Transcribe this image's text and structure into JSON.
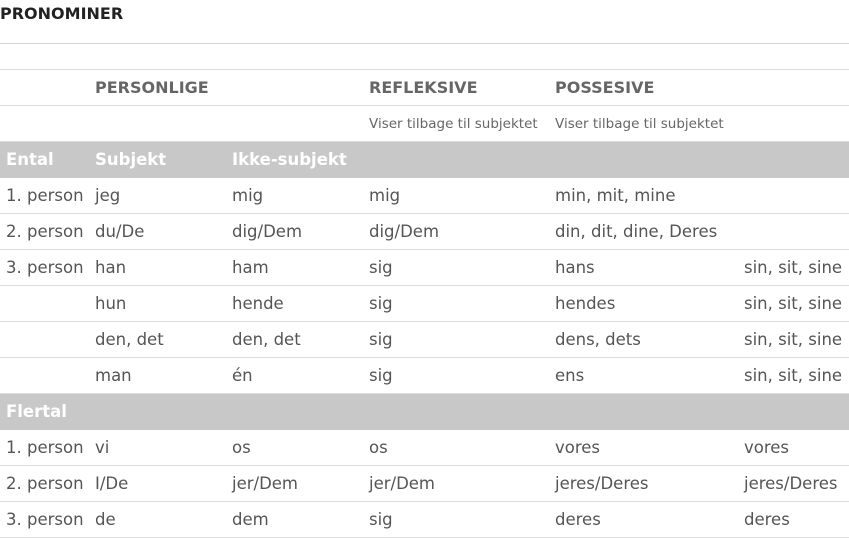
{
  "title": "PRONOMINER",
  "header": {
    "col0": "",
    "personlige": "PERSONLIGE",
    "col2": "",
    "refleksive": "REFLEKSIVE",
    "possesive": "POSSESIVE",
    "col5": ""
  },
  "subheader": {
    "refleksive_note": "Viser tilbage til subjektet",
    "possesive_note": "Viser tilbage til subjektet"
  },
  "groups": {
    "ental": {
      "label": "Ental",
      "subjekt": "Subjekt",
      "ikke_subjekt": "Ikke-subjekt",
      "rows": [
        [
          "1. person",
          "jeg",
          "mig",
          "mig",
          "min, mit, mine",
          ""
        ],
        [
          "2. person",
          "du/De",
          "dig/Dem",
          "dig/Dem",
          "din, dit, dine, Deres",
          ""
        ],
        [
          "3. person",
          "han",
          "ham",
          "sig",
          "hans",
          "sin, sit, sine"
        ],
        [
          "",
          "hun",
          "hende",
          "sig",
          "hendes",
          "sin, sit, sine"
        ],
        [
          "",
          "den, det",
          "den, det",
          "sig",
          "dens, dets",
          "sin, sit, sine"
        ],
        [
          "",
          "man",
          "én",
          "sig",
          "ens",
          "sin, sit, sine"
        ]
      ]
    },
    "flertal": {
      "label": "Flertal",
      "rows": [
        [
          "1. person",
          "vi",
          "os",
          "os",
          "vores",
          "vores"
        ],
        [
          "2. person",
          "I/De",
          "jer/Dem",
          "jer/Dem",
          "jeres/Deres",
          "jeres/Deres"
        ],
        [
          "3. person",
          "de",
          "dem",
          "sig",
          "deres",
          "deres"
        ]
      ]
    }
  }
}
